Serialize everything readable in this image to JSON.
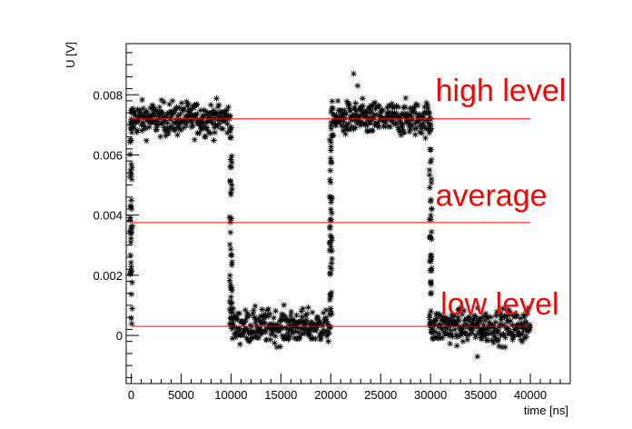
{
  "chart_data": {
    "type": "scatter",
    "xlabel": "time [ns]",
    "ylabel": "U [V]",
    "xlim": [
      -500,
      44000
    ],
    "ylim": [
      -0.0016,
      0.0097
    ],
    "xticks": [
      0,
      5000,
      10000,
      15000,
      20000,
      25000,
      30000,
      35000,
      40000
    ],
    "yticks": [
      0,
      0.002,
      0.004,
      0.006,
      0.008
    ],
    "xtick_labels": [
      "0",
      "5000",
      "10000",
      "15000",
      "20000",
      "25000",
      "30000",
      "35000",
      "40000"
    ],
    "ytick_labels": [
      "0",
      "0.002",
      "0.004",
      "0.006",
      "0.008"
    ],
    "marker": "*",
    "marker_color": "#000000",
    "line_color": "#ff0000",
    "signal": {
      "high_level": 0.0072,
      "low_level": 0.0003,
      "period_ns": 20000,
      "high_segments": [
        [
          0,
          10000
        ],
        [
          20000,
          30000
        ]
      ],
      "low_segments": [
        [
          10000,
          20000
        ],
        [
          30000,
          40000
        ]
      ],
      "x_end": 40000
    },
    "reference_lines": [
      {
        "name": "high level",
        "value": 0.0072,
        "x_range": [
          0,
          40000
        ]
      },
      {
        "name": "average",
        "value": 0.00375,
        "x_range": [
          0,
          40000
        ]
      },
      {
        "name": "low level",
        "value": 0.0003,
        "x_range": [
          0,
          40000
        ]
      }
    ],
    "annotations": [
      {
        "text": "high level",
        "x": 30500,
        "y": 0.0078
      },
      {
        "text": "average",
        "x": 30500,
        "y": 0.0043
      },
      {
        "text": "low level",
        "x": 31000,
        "y": 0.0007
      }
    ],
    "grid": false,
    "legend": "none"
  }
}
